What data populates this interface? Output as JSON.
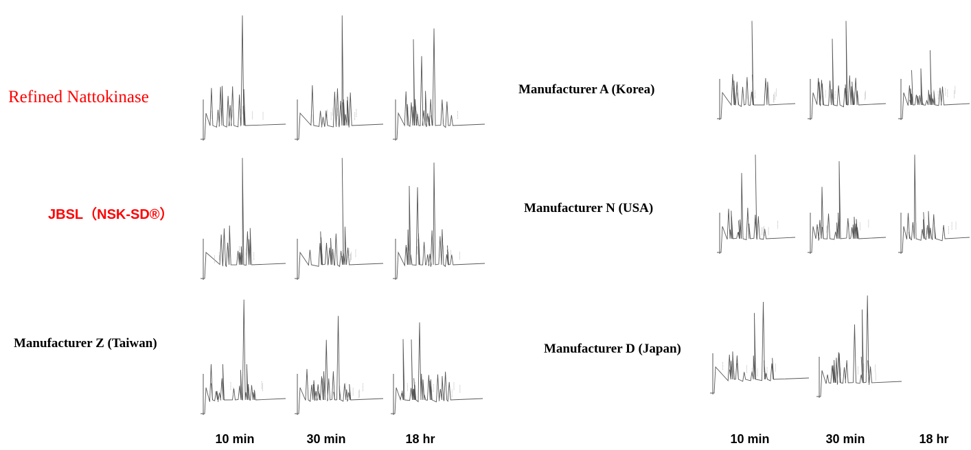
{
  "chart_data": {
    "type": "line",
    "left_panel": {
      "time_labels": [
        "10 min",
        "30 min",
        "18 hr"
      ],
      "samples": [
        {
          "name": "Refined Nattokinase",
          "color": "#ff0000",
          "style": "serif"
        },
        {
          "name": "JBSL（NSK-SD®）",
          "color": "#ff0000",
          "style": "sans"
        },
        {
          "name": "Manufacturer Z (Taiwan)",
          "color": "#000000",
          "style": "bold"
        }
      ]
    },
    "right_panel": {
      "time_labels": [
        "10 min",
        "30 min",
        "18 hr"
      ],
      "samples": [
        {
          "name": "Manufacturer A (Korea)",
          "color": "#000000",
          "style": "bold"
        },
        {
          "name": "Manufacturer N (USA)",
          "color": "#000000",
          "style": "bold"
        },
        {
          "name": "Manufacturer D (Japan)",
          "color": "#000000",
          "style": "bold"
        }
      ]
    }
  }
}
